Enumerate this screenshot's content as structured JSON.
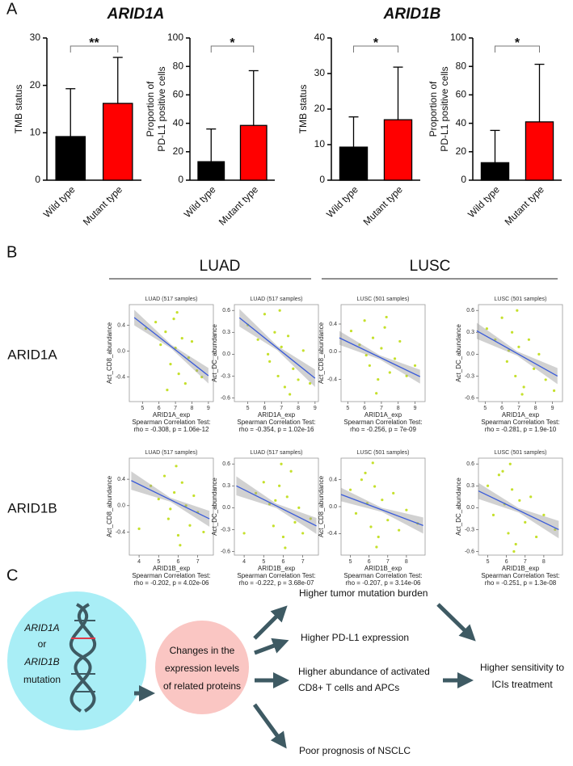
{
  "panel_labels": [
    "A",
    "B",
    "C"
  ],
  "gene_titles": [
    "ARID1A",
    "ARID1B"
  ],
  "group_labels": [
    "LUAD",
    "LUSC"
  ],
  "row_labels": [
    "ARID1A",
    "ARID1B"
  ],
  "chart_data": [
    {
      "type": "bar",
      "ylabel": [
        "TMB status"
      ],
      "categories": [
        "Wild type",
        "Mutant type"
      ],
      "values": [
        9.2,
        16.2
      ],
      "errors": [
        10.1,
        9.7
      ],
      "colors": [
        "#000000",
        "#ff0000"
      ],
      "significance": "**",
      "ylim": [
        0,
        30
      ],
      "yticks": [
        0,
        10,
        20,
        30
      ]
    },
    {
      "type": "bar",
      "ylabel": [
        "Proportion of",
        "PD-L1 positive cells"
      ],
      "categories": [
        "Wild type",
        "Mutant type"
      ],
      "values": [
        13,
        38.5
      ],
      "errors": [
        23,
        38.5
      ],
      "colors": [
        "#000000",
        "#ff0000"
      ],
      "significance": "*",
      "ylim": [
        0,
        100
      ],
      "yticks": [
        0,
        20,
        40,
        60,
        80,
        100
      ]
    },
    {
      "type": "bar",
      "ylabel": [
        "TMB status"
      ],
      "categories": [
        "Wild type",
        "Mutant type"
      ],
      "values": [
        9.3,
        17.0
      ],
      "errors": [
        8.5,
        14.8
      ],
      "colors": [
        "#000000",
        "#ff0000"
      ],
      "significance": "*",
      "ylim": [
        0,
        40
      ],
      "yticks": [
        0,
        10,
        20,
        30,
        40
      ]
    },
    {
      "type": "bar",
      "ylabel": [
        "Proportion of",
        "PD-L1 positive cells"
      ],
      "categories": [
        "Wild type",
        "Mutant type"
      ],
      "values": [
        12.3,
        41
      ],
      "errors": [
        22.7,
        40.5
      ],
      "colors": [
        "#000000",
        "#ff0000"
      ],
      "significance": "*",
      "ylim": [
        0,
        100
      ],
      "yticks": [
        0,
        20,
        40,
        60,
        80,
        100
      ]
    },
    {
      "type": "scatter",
      "title": "LUAD (517 samples)",
      "xlabel": "ARID1A_exp",
      "ylabel": "Act_CD8_abundance",
      "test": "Spearman Correlation Test:",
      "stat": "rho = -0.308, p = 1.06e-12",
      "color": "#c5e02c",
      "line_color": "#3a5bd9",
      "x": [
        5.2,
        5.8,
        6.1,
        6.4,
        6.7,
        6.9,
        7.0,
        7.2,
        7.4,
        7.6,
        7.8,
        8.0,
        8.3,
        8.6,
        6.5,
        7.1
      ],
      "y": [
        0.35,
        0.45,
        0.1,
        0.3,
        -0.2,
        0.5,
        0.05,
        -0.35,
        0.2,
        -0.5,
        -0.1,
        0.15,
        -0.3,
        -0.4,
        -0.6,
        0.6
      ],
      "fit": {
        "x": [
          4.5,
          6.75,
          9.0
        ],
        "y": [
          0.52,
          0.07,
          -0.38
        ],
        "lower": [
          0.4,
          0.04,
          -0.5
        ],
        "upper": [
          0.64,
          0.1,
          -0.26
        ]
      },
      "xlim": [
        4.2,
        9.3
      ],
      "ylim": [
        -0.78,
        0.72
      ],
      "xticks": [
        5,
        6,
        7,
        8,
        9
      ],
      "yticks": [
        -0.4,
        {
          "value": 0,
          "label": "0.0"
        },
        0.4
      ]
    },
    {
      "type": "scatter",
      "title": "LUAD (517 samples)",
      "xlabel": "ARID1A_exp",
      "ylabel": "Act_DC_abundance",
      "test": "Spearman Correlation Test:",
      "stat": "rho = -0.354, p = 1.02e-16",
      "color": "#c5e02c",
      "line_color": "#3a5bd9",
      "x": [
        5.0,
        5.6,
        6.0,
        6.3,
        6.6,
        6.8,
        7.0,
        7.2,
        7.4,
        7.7,
        8.0,
        8.3,
        8.7,
        6.9,
        7.5,
        6.2
      ],
      "y": [
        0.4,
        0.2,
        0.55,
        -0.1,
        0.3,
        -0.3,
        0.1,
        -0.45,
        0.25,
        -0.2,
        -0.35,
        0.05,
        -0.4,
        0.6,
        -0.55,
        0.0
      ],
      "fit": {
        "x": [
          4.5,
          6.75,
          9.0
        ],
        "y": [
          0.5,
          0.085,
          -0.33
        ],
        "lower": [
          0.38,
          0.055,
          -0.45
        ],
        "upper": [
          0.62,
          0.115,
          -0.21
        ]
      },
      "xlim": [
        4.2,
        9.2
      ],
      "ylim": [
        -0.65,
        0.68
      ],
      "xticks": [
        5,
        6,
        7,
        8,
        9
      ],
      "yticks": [
        -0.6,
        -0.3,
        {
          "value": 0,
          "label": "0.0"
        },
        0.3,
        0.6
      ]
    },
    {
      "type": "scatter",
      "title": "LUSC (501 samples)",
      "xlabel": "ARID1A_exp",
      "ylabel": "Act_CD8_abundance",
      "test": "Spearman Correlation Test:",
      "stat": "rho = -0.256, p = 7e-09",
      "color": "#c5e02c",
      "line_color": "#3a5bd9",
      "x": [
        5.2,
        5.7,
        6.0,
        6.3,
        6.5,
        6.8,
        7.0,
        7.2,
        7.5,
        7.8,
        8.1,
        8.5,
        9.0,
        6.7,
        7.3,
        6.1
      ],
      "y": [
        0.3,
        0.1,
        0.45,
        -0.2,
        0.2,
        -0.4,
        0.05,
        0.35,
        -0.3,
        -0.1,
        0.15,
        -0.35,
        -0.2,
        -0.6,
        0.5,
        -0.05
      ],
      "fit": {
        "x": [
          4.5,
          6.9,
          9.3
        ],
        "y": [
          0.2,
          -0.08,
          -0.36
        ],
        "lower": [
          0.1,
          -0.11,
          -0.46
        ],
        "upper": [
          0.3,
          -0.05,
          -0.26
        ]
      },
      "xlim": [
        4.6,
        9.6
      ],
      "ylim": [
        -0.72,
        0.68
      ],
      "xticks": [
        5,
        6,
        7,
        8,
        9
      ],
      "yticks": [
        -0.4,
        {
          "value": 0,
          "label": "0.0"
        },
        0.4
      ]
    },
    {
      "type": "scatter",
      "title": "LUSC (501 samples)",
      "xlabel": "ARID1A_exp",
      "ylabel": "Act_DC_abundance",
      "test": "Spearman Correlation Test:",
      "stat": "rho = -0.281, p = 1.9e-10",
      "color": "#c5e02c",
      "line_color": "#3a5bd9",
      "x": [
        5.1,
        5.6,
        6.0,
        6.3,
        6.6,
        6.8,
        7.0,
        7.3,
        7.6,
        7.9,
        8.2,
        8.6,
        9.1,
        6.9,
        7.2,
        6.4
      ],
      "y": [
        0.35,
        0.2,
        0.5,
        -0.1,
        0.3,
        -0.3,
        0.1,
        -0.45,
        0.2,
        -0.2,
        0.0,
        -0.35,
        -0.5,
        0.6,
        -0.55,
        0.05
      ],
      "fit": {
        "x": [
          4.5,
          6.9,
          9.3
        ],
        "y": [
          0.32,
          0.01,
          -0.3
        ],
        "lower": [
          0.21,
          -0.02,
          -0.41
        ],
        "upper": [
          0.43,
          0.04,
          -0.19
        ]
      },
      "xlim": [
        4.6,
        9.6
      ],
      "ylim": [
        -0.65,
        0.68
      ],
      "xticks": [
        5,
        6,
        7,
        8,
        9
      ],
      "yticks": [
        -0.6,
        -0.3,
        {
          "value": 0,
          "label": "0.0"
        },
        0.3,
        0.6
      ]
    },
    {
      "type": "scatter",
      "title": "LUAD (517 samples)",
      "xlabel": "ARID1B_exp",
      "ylabel": "Act_CD8_abundance",
      "test": "Spearman Correlation Test:",
      "stat": "rho = -0.202, p = 4.02e-06",
      "color": "#c5e02c",
      "line_color": "#3a5bd9",
      "x": [
        4.0,
        4.6,
        5.0,
        5.3,
        5.5,
        5.8,
        6.0,
        6.2,
        6.4,
        6.6,
        6.8,
        7.0,
        7.3,
        5.9,
        6.1,
        5.6
      ],
      "y": [
        -0.35,
        0.3,
        0.1,
        0.45,
        -0.2,
        0.2,
        -0.45,
        0.35,
        0.0,
        -0.3,
        0.15,
        -0.1,
        -0.4,
        0.6,
        -0.6,
        -0.05
      ],
      "fit": {
        "x": [
          3.6,
          5.6,
          7.6
        ],
        "y": [
          0.38,
          0.09,
          -0.2
        ],
        "lower": [
          0.24,
          0.06,
          -0.32
        ],
        "upper": [
          0.52,
          0.12,
          -0.08
        ]
      },
      "xlim": [
        3.5,
        7.8
      ],
      "ylim": [
        -0.75,
        0.72
      ],
      "xticks": [
        4,
        5,
        6,
        7
      ],
      "yticks": [
        -0.4,
        {
          "value": 0,
          "label": "0.0"
        },
        0.4
      ]
    },
    {
      "type": "scatter",
      "title": "LUAD (517 samples)",
      "xlabel": "ARID1B_exp",
      "ylabel": "Act_DC_abundance",
      "test": "Spearman Correlation Test:",
      "stat": "rho = -0.222, p = 3.68e-07",
      "color": "#c5e02c",
      "line_color": "#3a5bd9",
      "x": [
        4.0,
        4.6,
        5.0,
        5.3,
        5.5,
        5.8,
        6.0,
        6.2,
        6.4,
        6.6,
        6.8,
        7.0,
        7.4,
        5.9,
        6.1,
        5.6
      ],
      "y": [
        -0.35,
        0.2,
        0.35,
        0.05,
        -0.25,
        0.3,
        -0.4,
        0.15,
        0.5,
        -0.2,
        0.0,
        -0.35,
        -0.15,
        0.6,
        -0.55,
        0.1
      ],
      "fit": {
        "x": [
          3.6,
          5.65,
          7.7
        ],
        "y": [
          0.3,
          0.025,
          -0.25
        ],
        "lower": [
          0.17,
          -0.005,
          -0.36
        ],
        "upper": [
          0.43,
          0.055,
          -0.14
        ]
      },
      "xlim": [
        3.5,
        7.8
      ],
      "ylim": [
        -0.65,
        0.68
      ],
      "xticks": [
        4,
        5,
        6,
        7
      ],
      "yticks": [
        -0.6,
        -0.3,
        {
          "value": 0,
          "label": "0.0"
        },
        0.3,
        0.6
      ]
    },
    {
      "type": "scatter",
      "title": "LUSC (501 samples)",
      "xlabel": "ARID1B_exp",
      "ylabel": "Act_CD8_abundance",
      "test": "Spearman Correlation Test:",
      "stat": "rho = -0.207, p = 3.14e-06",
      "color": "#c5e02c",
      "line_color": "#3a5bd9",
      "x": [
        5.0,
        5.3,
        5.6,
        5.9,
        6.1,
        6.3,
        6.5,
        6.7,
        7.0,
        7.3,
        7.6,
        8.0,
        8.6,
        6.2,
        6.4,
        5.8
      ],
      "y": [
        0.25,
        -0.1,
        0.4,
        0.05,
        -0.3,
        0.3,
        -0.45,
        0.1,
        -0.2,
        0.2,
        -0.35,
        -0.05,
        -0.25,
        0.65,
        -0.6,
        0.5
      ],
      "fit": {
        "x": [
          4.5,
          6.7,
          8.9
        ],
        "y": [
          0.18,
          -0.05,
          -0.28
        ],
        "lower": [
          0.08,
          -0.08,
          -0.4
        ],
        "upper": [
          0.28,
          -0.02,
          -0.16
        ]
      },
      "xlim": [
        4.5,
        9.0
      ],
      "ylim": [
        -0.72,
        0.72
      ],
      "xticks": [
        5,
        6,
        7,
        8
      ],
      "yticks": [
        -0.4,
        {
          "value": 0,
          "label": "0.0"
        },
        0.4
      ]
    },
    {
      "type": "scatter",
      "title": "LUSC (501 samples)",
      "xlabel": "ARID1B_exp",
      "ylabel": "Act_DC_abundance",
      "test": "Spearman Correlation Test:",
      "stat": "rho = -0.251, p = 1.3e-08",
      "color": "#c5e02c",
      "line_color": "#3a5bd9",
      "x": [
        5.0,
        5.3,
        5.6,
        5.9,
        6.1,
        6.3,
        6.5,
        6.7,
        7.0,
        7.3,
        7.6,
        8.0,
        8.6,
        6.2,
        6.4,
        5.8
      ],
      "y": [
        0.3,
        -0.1,
        0.45,
        0.05,
        -0.35,
        0.25,
        -0.5,
        0.1,
        -0.2,
        0.15,
        -0.4,
        -0.1,
        -0.3,
        0.6,
        -0.6,
        0.5
      ],
      "fit": {
        "x": [
          4.5,
          6.65,
          8.8
        ],
        "y": [
          0.23,
          -0.035,
          -0.3
        ],
        "lower": [
          0.12,
          -0.065,
          -0.42
        ],
        "upper": [
          0.34,
          -0.005,
          -0.18
        ]
      },
      "xlim": [
        4.5,
        9.0
      ],
      "ylim": [
        -0.65,
        0.68
      ],
      "xticks": [
        5,
        6,
        7,
        8
      ],
      "yticks": [
        -0.6,
        -0.3,
        {
          "value": 0,
          "label": "0.0"
        },
        0.3,
        0.6
      ]
    }
  ],
  "diagram": {
    "mutation": [
      "ARID1A",
      "or",
      "ARID1B",
      "mutation"
    ],
    "changes": [
      "Changes in the",
      "expression levels",
      "of related proteins"
    ],
    "outcomes": [
      [
        "Higher tumor mutation burden"
      ],
      [
        "Higher PD-L1 expression"
      ],
      [
        "Higher abundance of activated",
        "CD8+ T cells and APCs"
      ],
      [
        "Poor prognosis of NSCLC"
      ]
    ],
    "result": [
      "Higher sensitivity to",
      "ICIs treatment"
    ]
  }
}
